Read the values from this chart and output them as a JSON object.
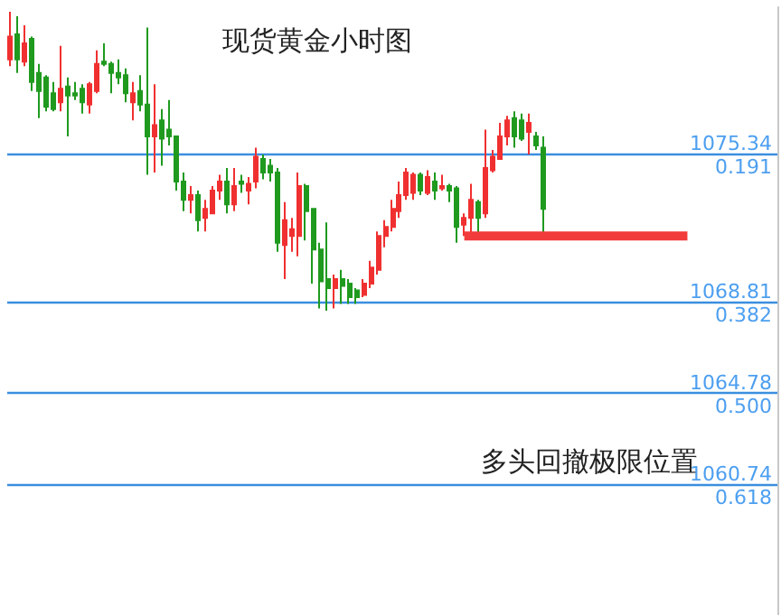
{
  "chart_data": {
    "type": "candlestick",
    "title": "现货黄金小时图",
    "categories": [
      null,
      null,
      null,
      null,
      null,
      null,
      null,
      null,
      null,
      null,
      null,
      null,
      null,
      null,
      null,
      null,
      null,
      null,
      null,
      null,
      null,
      null,
      null,
      null,
      null,
      null,
      null,
      null,
      null,
      null,
      null,
      null,
      null,
      null,
      null,
      null,
      null,
      null,
      null,
      null,
      null,
      null,
      null,
      null,
      null,
      null,
      null,
      null,
      null,
      null,
      null,
      null,
      null,
      null,
      null,
      null,
      null,
      null,
      null,
      null,
      null,
      null,
      null,
      null,
      null,
      null,
      null,
      null,
      null,
      null,
      null,
      null,
      null,
      null,
      null,
      null,
      null,
      null,
      null,
      null,
      null,
      null,
      null,
      null,
      null,
      null,
      null,
      null,
      null,
      null,
      null,
      null,
      null,
      null,
      null,
      null,
      null,
      null,
      null,
      null,
      null,
      null,
      null,
      null,
      null,
      null,
      null
    ],
    "colors": [
      "#f03030",
      "#1f9a1f",
      "#f03030",
      "#1f9a1f",
      "#1f9a1f",
      "#1f9a1f",
      "#1f9a1f",
      "#f03030",
      "#1f9a1f",
      "#1f9a1f",
      "#1f9a1f",
      "#f03030",
      "#f03030",
      "#1f9a1f",
      "#1f9a1f",
      "#1f9a1f",
      "#1f9a1f",
      "#f03030",
      "#1f9a1f",
      "#1f9a1f",
      "#f03030",
      "#1f9a1f",
      "#1f9a1f",
      "#1f9a1f",
      "#1f9a1f",
      "#f03030",
      "#1f9a1f",
      "#f03030",
      "#f03030",
      "#f03030",
      "#1f9a1f",
      "#f03030",
      "#1f9a1f",
      "#f03030",
      "#f03030",
      "#1f9a1f",
      "#1f9a1f",
      "#1f9a1f",
      "#f03030",
      "#f03030",
      "#f03030",
      "#1f9a1f",
      "#1f9a1f",
      "#1f9a1f",
      "#1f9a1f",
      "#f03030",
      "#1f9a1f",
      "#1f9a1f",
      "#1f9a1f",
      "#f03030",
      "#f03030",
      "#f03030",
      "#f03030",
      "#f03030",
      "#f03030",
      "#f03030",
      "#f03030",
      "#1f9a1f",
      "#f03030",
      "#1f9a1f",
      "#f03030",
      "#1f9a1f",
      "#1f9a1f",
      "#f03030",
      "#f03030",
      "#1f9a1f",
      "#f03030",
      "#f03030",
      "#f03030",
      "#f03030",
      "#1f9a1f",
      "#1f9a1f",
      "#f03030",
      "#1f9a1f",
      "#1f9a1f",
      null,
      null,
      null,
      null,
      null,
      null,
      null,
      null,
      null,
      null,
      null,
      null,
      null,
      null,
      null,
      null,
      null,
      null,
      null,
      null,
      null,
      null,
      null,
      null,
      null,
      null,
      null,
      null,
      null,
      null,
      null,
      null
    ],
    "ohlc": [
      [
        1079.5,
        1081.6,
        1079.2,
        1080.5
      ],
      [
        1080.6,
        1081.4,
        1078.9,
        1079.5
      ],
      [
        1079.4,
        1081.0,
        1079.2,
        1080.2
      ],
      [
        1080.4,
        1080.5,
        1078.1,
        1078.5
      ],
      [
        1078.9,
        1079.3,
        1076.9,
        1078.1
      ],
      [
        1078.7,
        1078.8,
        1077.2,
        1077.4
      ],
      [
        1078.0,
        1078.5,
        1077.2,
        1077.3
      ],
      [
        1077.6,
        1080.1,
        1077.2,
        1078.2
      ],
      [
        1078.3,
        1078.7,
        1076.1,
        1077.9
      ],
      [
        1078.0,
        1078.5,
        1077.7,
        1077.9
      ],
      [
        1078.2,
        1078.4,
        1077.1,
        1077.6
      ],
      [
        1077.5,
        1078.5,
        1077.1,
        1078.4
      ],
      [
        1078.1,
        1079.9,
        1078.0,
        1079.3
      ],
      [
        1079.4,
        1080.2,
        1079.2,
        1079.3
      ],
      [
        1079.3,
        1079.4,
        1078.0,
        1078.9
      ],
      [
        1078.9,
        1079.5,
        1078.4,
        1078.7
      ],
      [
        1078.8,
        1079.1,
        1077.6,
        1078.0
      ],
      [
        1077.6,
        1078.5,
        1076.8,
        1078.0
      ],
      [
        1078.1,
        1078.8,
        1077.2,
        1077.5
      ],
      [
        1077.5,
        1080.9,
        1074.4,
        1076.1
      ],
      [
        1076.1,
        1078.4,
        1074.5,
        1076.6
      ],
      [
        1076.8,
        1077.3,
        1074.8,
        1076.0
      ],
      [
        1076.4,
        1077.7,
        1075.7,
        1076.1
      ],
      [
        1076.1,
        1076.1,
        1073.7,
        1074.1
      ],
      [
        1074.1,
        1074.5,
        1072.8,
        1073.3
      ],
      [
        1073.3,
        1073.9,
        1072.7,
        1073.5
      ],
      [
        1073.5,
        1073.7,
        1071.9,
        1072.4
      ],
      [
        1072.5,
        1073.3,
        1071.9,
        1072.9
      ],
      [
        1072.7,
        1073.9,
        1072.7,
        1073.7
      ],
      [
        1073.7,
        1074.4,
        1073.3,
        1074.1
      ],
      [
        1074.1,
        1074.7,
        1072.7,
        1073.1
      ],
      [
        1073.1,
        1074.7,
        1072.8,
        1073.9
      ],
      [
        1074.1,
        1074.4,
        1073.6,
        1074.0
      ],
      [
        1073.7,
        1074.3,
        1073.1,
        1074.0
      ],
      [
        1074.1,
        1075.6,
        1073.8,
        1075.2
      ],
      [
        1075.1,
        1075.3,
        1074.2,
        1074.5
      ],
      [
        1074.8,
        1075.1,
        1074.1,
        1074.5
      ],
      [
        1074.5,
        1074.7,
        1071.0,
        1071.4
      ],
      [
        1071.3,
        1073.2,
        1069.8,
        1072.4
      ],
      [
        1071.7,
        1072.5,
        1071.0,
        1072.0
      ],
      [
        1071.7,
        1074.5,
        1070.8,
        1073.9
      ],
      [
        1073.9,
        1074.0,
        1071.5,
        1072.8
      ],
      [
        1072.9,
        1072.9,
        1069.6,
        1071.1
      ],
      [
        1071.1,
        1071.4,
        1068.5,
        1069.7
      ],
      [
        1069.8,
        1072.3,
        1068.4,
        1069.4
      ],
      [
        1069.4,
        1070.0,
        1068.5,
        1069.8
      ],
      [
        1069.8,
        1070.2,
        1068.7,
        1069.5
      ],
      [
        1069.6,
        1069.8,
        1068.7,
        1069.0
      ],
      [
        1069.3,
        1069.4,
        1068.7,
        1069.0
      ],
      [
        1069.1,
        1069.8,
        1069.0,
        1069.6
      ],
      [
        1069.6,
        1070.6,
        1069.4,
        1070.3
      ],
      [
        1070.2,
        1071.9,
        1070.0,
        1071.7
      ],
      [
        1071.7,
        1072.4,
        1071.2,
        1072.1
      ],
      [
        1072.1,
        1073.3,
        1071.9,
        1072.9
      ],
      [
        1072.8,
        1074.1,
        1072.5,
        1073.5
      ],
      [
        1073.5,
        1074.7,
        1073.3,
        1074.5
      ],
      [
        1073.6,
        1074.5,
        1073.3,
        1074.4
      ],
      [
        1074.4,
        1074.5,
        1073.5,
        1073.7
      ],
      [
        1073.6,
        1074.6,
        1073.5,
        1074.3
      ],
      [
        1074.1,
        1074.5,
        1073.3,
        1073.7
      ],
      [
        1073.8,
        1074.4,
        1073.7,
        1073.9
      ],
      [
        1073.9,
        1074.0,
        1073.2,
        1073.7
      ],
      [
        1073.8,
        1073.9,
        1071.4,
        1072.1
      ],
      [
        1072.2,
        1072.7,
        1071.7,
        1072.5
      ],
      [
        1072.5,
        1074.0,
        1071.7,
        1073.3
      ],
      [
        1073.2,
        1073.3,
        1071.7,
        1072.5
      ],
      [
        1072.7,
        1076.4,
        1072.5,
        1074.7
      ],
      [
        1074.6,
        1075.5,
        1074.5,
        1075.2
      ],
      [
        1075.1,
        1076.7,
        1075.1,
        1076.1
      ],
      [
        1076.1,
        1077.0,
        1075.7,
        1076.8
      ],
      [
        1076.9,
        1077.2,
        1075.6,
        1076.1
      ],
      [
        1076.8,
        1077.1,
        1075.9,
        1076.0
      ],
      [
        1076.3,
        1077.1,
        1075.3,
        1076.7
      ],
      [
        1076.1,
        1076.3,
        1075.5,
        1075.7
      ],
      [
        1075.6,
        1076.1,
        1071.7,
        1072.9
      ],
      null,
      null,
      null,
      null,
      null,
      null,
      null,
      null,
      null,
      null,
      null,
      null,
      null,
      null,
      null,
      null,
      null,
      null,
      null,
      null,
      null,
      null,
      null,
      null,
      null,
      null,
      null,
      null,
      null,
      null,
      null,
      null
    ],
    "series": [
      {
        "type": "line",
        "color": "#f23b3b",
        "values": [
          null,
          null,
          null,
          null,
          null,
          null,
          null,
          null,
          null,
          null,
          null,
          null,
          null,
          null,
          null,
          null,
          null,
          null,
          null,
          null,
          null,
          null,
          null,
          null,
          null,
          null,
          null,
          null,
          null,
          null,
          null,
          null,
          null,
          null,
          null,
          null,
          null,
          null,
          null,
          null,
          null,
          null,
          null,
          null,
          null,
          null,
          null,
          null,
          null,
          null,
          null,
          null,
          null,
          null,
          null,
          null,
          null,
          null,
          null,
          null,
          null,
          null,
          null,
          1071.7,
          1071.7,
          1071.7,
          1071.7,
          1071.7,
          1071.7,
          1071.7,
          1071.7,
          1071.7,
          1071.7,
          1071.7,
          1071.7,
          1071.7,
          1071.7,
          1071.7,
          1071.7,
          1071.7,
          1071.7,
          1071.7,
          1071.7,
          1071.7,
          1071.7,
          1071.7,
          1071.7,
          1071.7,
          1071.7,
          1071.7,
          1071.7,
          1071.7,
          1071.7,
          1071.7,
          1071.7,
          null,
          null,
          null,
          null,
          null,
          null,
          null,
          null,
          null,
          null,
          null,
          null
        ]
      }
    ],
    "ylim": [
      1055.0,
      1081.8
    ],
    "yticks": [
      1060.74,
      1064.78,
      1068.81,
      1075.34
    ],
    "y2lim": [
      0.786,
      0.002
    ],
    "y2ticks": [
      0.191,
      0.382,
      {
        "value": 0.5,
        "label": "0.500"
      },
      0.618
    ],
    "annotations": [
      "多头回撤极限位置"
    ],
    "tick_labels": "y",
    "grid": "y"
  }
}
